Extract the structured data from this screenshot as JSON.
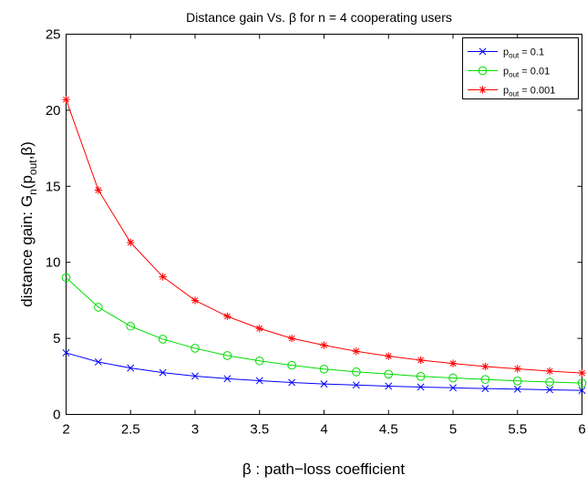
{
  "chart_data": {
    "type": "line",
    "title_prefix": "Distance gain Vs. ",
    "title_symbol": "β",
    "title_suffix": " for n = 4 cooperating users",
    "xlabel": "β : path−loss coefficient",
    "ylabel_main": "distance gain: G",
    "ylabel_sub_n": "n",
    "ylabel_open": "(p",
    "ylabel_sub_out": "out",
    "ylabel_close": ",β)",
    "xlim": [
      2,
      6
    ],
    "ylim": [
      0,
      25
    ],
    "x_ticks": [
      2,
      2.5,
      3,
      3.5,
      4,
      4.5,
      5,
      5.5,
      6
    ],
    "y_ticks": [
      0,
      5,
      10,
      15,
      20,
      25
    ],
    "x_tick_labels": [
      "2",
      "2.5",
      "3",
      "3.5",
      "4",
      "4.5",
      "5",
      "5.5",
      "6"
    ],
    "y_tick_labels": [
      "0",
      "5",
      "10",
      "15",
      "20",
      "25"
    ],
    "grid": false,
    "legend_position": "top-right",
    "x": [
      2,
      2.25,
      2.5,
      2.75,
      3,
      3.25,
      3.5,
      3.75,
      4,
      4.25,
      4.5,
      4.75,
      5,
      5.25,
      5.5,
      5.75,
      6
    ],
    "series": [
      {
        "legend_base": "p",
        "legend_sub": "out",
        "legend_value": " = 0.1",
        "color": "#0000ff",
        "marker": "x",
        "values": [
          4.05,
          3.45,
          3.05,
          2.75,
          2.52,
          2.35,
          2.22,
          2.1,
          2.0,
          1.93,
          1.86,
          1.8,
          1.75,
          1.7,
          1.66,
          1.62,
          1.58
        ]
      },
      {
        "legend_base": "p",
        "legend_sub": "out",
        "legend_value": " = 0.01",
        "color": "#00dd00",
        "marker": "o",
        "values": [
          9.0,
          7.05,
          5.8,
          4.95,
          4.35,
          3.87,
          3.52,
          3.23,
          2.98,
          2.8,
          2.65,
          2.5,
          2.4,
          2.3,
          2.2,
          2.13,
          2.06
        ]
      },
      {
        "legend_base": "p",
        "legend_sub": "out",
        "legend_value": " = 0.001",
        "color": "#ff0000",
        "marker": "*",
        "values": [
          20.7,
          14.75,
          11.3,
          9.05,
          7.5,
          6.45,
          5.65,
          5.0,
          4.55,
          4.15,
          3.83,
          3.57,
          3.35,
          3.15,
          3.0,
          2.85,
          2.72
        ]
      }
    ]
  }
}
